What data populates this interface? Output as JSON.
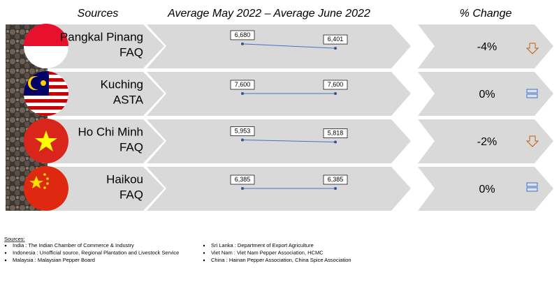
{
  "header": {
    "sources": "Sources",
    "period": "Average May 2022 – Average June 2022",
    "change": "% Change"
  },
  "rows": [
    {
      "market": "Pangkal Pinang",
      "grade": "FAQ",
      "values": [
        6680,
        6401
      ],
      "value_labels": [
        "6,680",
        "6,401"
      ],
      "change": "-4%"
    },
    {
      "market": "Kuching",
      "grade": "ASTA",
      "values": [
        7600,
        7600
      ],
      "value_labels": [
        "7,600",
        "7,600"
      ],
      "change": "0%"
    },
    {
      "market": "Ho Chi Minh",
      "grade": "FAQ",
      "values": [
        5953,
        5818
      ],
      "value_labels": [
        "5,953",
        "5,818"
      ],
      "change": "-2%"
    },
    {
      "market": "Haikou",
      "grade": "FAQ",
      "values": [
        6385,
        6385
      ],
      "value_labels": [
        "6,385",
        "6,385"
      ],
      "change": "0%"
    }
  ],
  "footnote": {
    "title": "Sources:",
    "items": [
      "India : The Indian Chamber of Commerce & Industry",
      "Indonesia : Unofficial source, Regional Plantation and Livestock Service",
      "Malaysia : Malaysian Pepper Board",
      "Sri Lanka : Department of Export Agriculture",
      "Viet Nam : Viet Nam Pepper Association, HCMC",
      "China : Hainan Pepper Association, China Spice Association"
    ]
  }
}
